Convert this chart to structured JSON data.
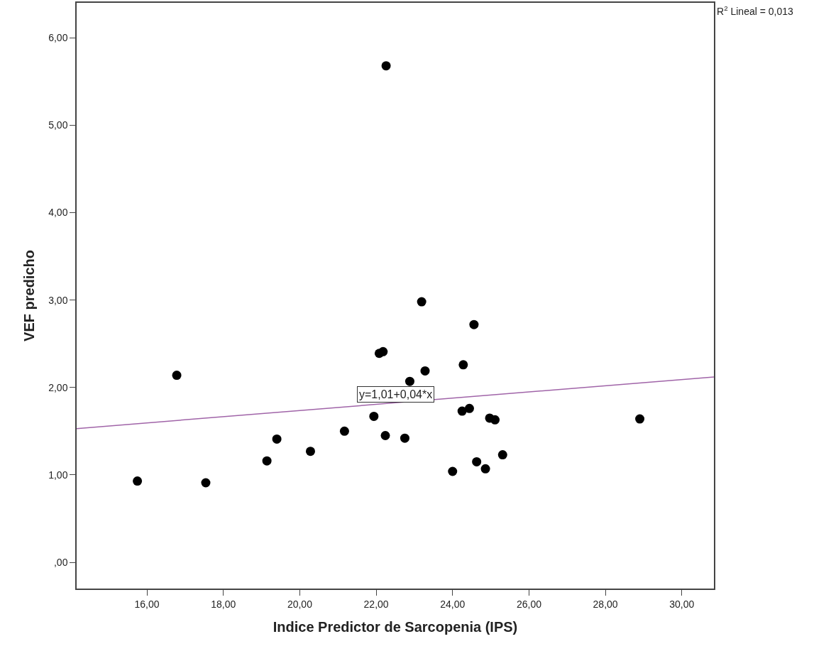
{
  "chart_data": {
    "type": "scatter",
    "xlabel": "Indice Predictor de Sarcopenia (IPS)",
    "ylabel": "VEF predicho",
    "xlim": [
      14.16,
      30.84
    ],
    "ylim": [
      -0.3,
      6.4
    ],
    "xticks": [
      {
        "value": 16,
        "label": "16,00"
      },
      {
        "value": 18,
        "label": "18,00"
      },
      {
        "value": 20,
        "label": "20,00"
      },
      {
        "value": 22,
        "label": "22,00"
      },
      {
        "value": 24,
        "label": "24,00"
      },
      {
        "value": 26,
        "label": "26,00"
      },
      {
        "value": 28,
        "label": "28,00"
      },
      {
        "value": 30,
        "label": "30,00"
      }
    ],
    "yticks": [
      {
        "value": 0,
        "label": ",00"
      },
      {
        "value": 1,
        "label": "1,00"
      },
      {
        "value": 2,
        "label": "2,00"
      },
      {
        "value": 3,
        "label": "3,00"
      },
      {
        "value": 4,
        "label": "4,00"
      },
      {
        "value": 5,
        "label": "5,00"
      },
      {
        "value": 6,
        "label": "6,00"
      }
    ],
    "series": [
      {
        "marker": "circle",
        "color": "#000000",
        "x": [
          16.78,
          15.75,
          17.54,
          19.14,
          19.4,
          20.28,
          21.17,
          21.94,
          23.19,
          24.56,
          22.08,
          22.18,
          23.28,
          24.28,
          22.24,
          22.75,
          24.25,
          24.44,
          24.97,
          25.11,
          28.9,
          25.31,
          24.63,
          24.86,
          24.0,
          22.26,
          22.88
        ],
        "values": [
          2.14,
          0.93,
          0.91,
          1.16,
          1.41,
          1.27,
          1.5,
          1.67,
          2.98,
          2.72,
          2.39,
          2.41,
          2.19,
          2.26,
          1.45,
          1.42,
          1.73,
          1.76,
          1.65,
          1.63,
          1.64,
          1.23,
          1.15,
          1.07,
          1.04,
          5.68,
          2.07
        ]
      },
      {
        "type": "line",
        "marker": "none",
        "color": "#a064a8",
        "line_style": "solid",
        "x": [
          14.16,
          30.84
        ],
        "values": [
          1.53,
          2.12
        ]
      }
    ],
    "annotations": [
      "y=1,01+0,04*x",
      "R$^{2}$ Lineal = 0,013"
    ]
  }
}
